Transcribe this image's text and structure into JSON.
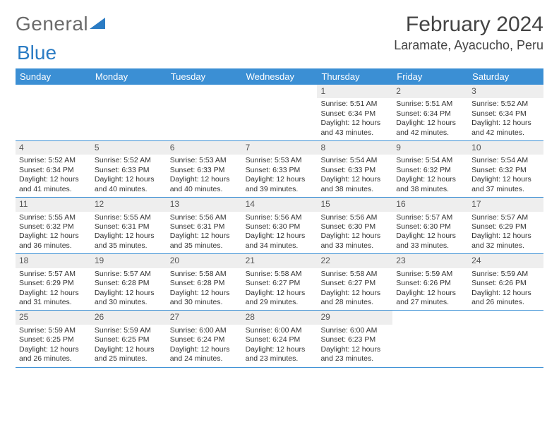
{
  "logo": {
    "text1": "General",
    "text2": "Blue"
  },
  "title": "February 2024",
  "location": "Laramate, Ayacucho, Peru",
  "day_headers": [
    "Sunday",
    "Monday",
    "Tuesday",
    "Wednesday",
    "Thursday",
    "Friday",
    "Saturday"
  ],
  "colors": {
    "header_bg": "#3b8fd4",
    "header_text": "#ffffff",
    "daynum_bg": "#eeeeee",
    "row_border": "#3b8fd4",
    "logo_gray": "#6b6b6b",
    "logo_blue": "#2b7cc4",
    "body_text": "#333333"
  },
  "layout": {
    "columns": 7,
    "rows": 5,
    "cell_fontsize_pt": 8,
    "title_fontsize_pt": 22,
    "location_fontsize_pt": 14,
    "header_fontsize_pt": 10
  },
  "weeks": [
    [
      {
        "empty": true
      },
      {
        "empty": true
      },
      {
        "empty": true
      },
      {
        "empty": true
      },
      {
        "num": "1",
        "sunrise": "Sunrise: 5:51 AM",
        "sunset": "Sunset: 6:34 PM",
        "daylight1": "Daylight: 12 hours",
        "daylight2": "and 43 minutes."
      },
      {
        "num": "2",
        "sunrise": "Sunrise: 5:51 AM",
        "sunset": "Sunset: 6:34 PM",
        "daylight1": "Daylight: 12 hours",
        "daylight2": "and 42 minutes."
      },
      {
        "num": "3",
        "sunrise": "Sunrise: 5:52 AM",
        "sunset": "Sunset: 6:34 PM",
        "daylight1": "Daylight: 12 hours",
        "daylight2": "and 42 minutes."
      }
    ],
    [
      {
        "num": "4",
        "sunrise": "Sunrise: 5:52 AM",
        "sunset": "Sunset: 6:34 PM",
        "daylight1": "Daylight: 12 hours",
        "daylight2": "and 41 minutes."
      },
      {
        "num": "5",
        "sunrise": "Sunrise: 5:52 AM",
        "sunset": "Sunset: 6:33 PM",
        "daylight1": "Daylight: 12 hours",
        "daylight2": "and 40 minutes."
      },
      {
        "num": "6",
        "sunrise": "Sunrise: 5:53 AM",
        "sunset": "Sunset: 6:33 PM",
        "daylight1": "Daylight: 12 hours",
        "daylight2": "and 40 minutes."
      },
      {
        "num": "7",
        "sunrise": "Sunrise: 5:53 AM",
        "sunset": "Sunset: 6:33 PM",
        "daylight1": "Daylight: 12 hours",
        "daylight2": "and 39 minutes."
      },
      {
        "num": "8",
        "sunrise": "Sunrise: 5:54 AM",
        "sunset": "Sunset: 6:33 PM",
        "daylight1": "Daylight: 12 hours",
        "daylight2": "and 38 minutes."
      },
      {
        "num": "9",
        "sunrise": "Sunrise: 5:54 AM",
        "sunset": "Sunset: 6:32 PM",
        "daylight1": "Daylight: 12 hours",
        "daylight2": "and 38 minutes."
      },
      {
        "num": "10",
        "sunrise": "Sunrise: 5:54 AM",
        "sunset": "Sunset: 6:32 PM",
        "daylight1": "Daylight: 12 hours",
        "daylight2": "and 37 minutes."
      }
    ],
    [
      {
        "num": "11",
        "sunrise": "Sunrise: 5:55 AM",
        "sunset": "Sunset: 6:32 PM",
        "daylight1": "Daylight: 12 hours",
        "daylight2": "and 36 minutes."
      },
      {
        "num": "12",
        "sunrise": "Sunrise: 5:55 AM",
        "sunset": "Sunset: 6:31 PM",
        "daylight1": "Daylight: 12 hours",
        "daylight2": "and 35 minutes."
      },
      {
        "num": "13",
        "sunrise": "Sunrise: 5:56 AM",
        "sunset": "Sunset: 6:31 PM",
        "daylight1": "Daylight: 12 hours",
        "daylight2": "and 35 minutes."
      },
      {
        "num": "14",
        "sunrise": "Sunrise: 5:56 AM",
        "sunset": "Sunset: 6:30 PM",
        "daylight1": "Daylight: 12 hours",
        "daylight2": "and 34 minutes."
      },
      {
        "num": "15",
        "sunrise": "Sunrise: 5:56 AM",
        "sunset": "Sunset: 6:30 PM",
        "daylight1": "Daylight: 12 hours",
        "daylight2": "and 33 minutes."
      },
      {
        "num": "16",
        "sunrise": "Sunrise: 5:57 AM",
        "sunset": "Sunset: 6:30 PM",
        "daylight1": "Daylight: 12 hours",
        "daylight2": "and 33 minutes."
      },
      {
        "num": "17",
        "sunrise": "Sunrise: 5:57 AM",
        "sunset": "Sunset: 6:29 PM",
        "daylight1": "Daylight: 12 hours",
        "daylight2": "and 32 minutes."
      }
    ],
    [
      {
        "num": "18",
        "sunrise": "Sunrise: 5:57 AM",
        "sunset": "Sunset: 6:29 PM",
        "daylight1": "Daylight: 12 hours",
        "daylight2": "and 31 minutes."
      },
      {
        "num": "19",
        "sunrise": "Sunrise: 5:57 AM",
        "sunset": "Sunset: 6:28 PM",
        "daylight1": "Daylight: 12 hours",
        "daylight2": "and 30 minutes."
      },
      {
        "num": "20",
        "sunrise": "Sunrise: 5:58 AM",
        "sunset": "Sunset: 6:28 PM",
        "daylight1": "Daylight: 12 hours",
        "daylight2": "and 30 minutes."
      },
      {
        "num": "21",
        "sunrise": "Sunrise: 5:58 AM",
        "sunset": "Sunset: 6:27 PM",
        "daylight1": "Daylight: 12 hours",
        "daylight2": "and 29 minutes."
      },
      {
        "num": "22",
        "sunrise": "Sunrise: 5:58 AM",
        "sunset": "Sunset: 6:27 PM",
        "daylight1": "Daylight: 12 hours",
        "daylight2": "and 28 minutes."
      },
      {
        "num": "23",
        "sunrise": "Sunrise: 5:59 AM",
        "sunset": "Sunset: 6:26 PM",
        "daylight1": "Daylight: 12 hours",
        "daylight2": "and 27 minutes."
      },
      {
        "num": "24",
        "sunrise": "Sunrise: 5:59 AM",
        "sunset": "Sunset: 6:26 PM",
        "daylight1": "Daylight: 12 hours",
        "daylight2": "and 26 minutes."
      }
    ],
    [
      {
        "num": "25",
        "sunrise": "Sunrise: 5:59 AM",
        "sunset": "Sunset: 6:25 PM",
        "daylight1": "Daylight: 12 hours",
        "daylight2": "and 26 minutes."
      },
      {
        "num": "26",
        "sunrise": "Sunrise: 5:59 AM",
        "sunset": "Sunset: 6:25 PM",
        "daylight1": "Daylight: 12 hours",
        "daylight2": "and 25 minutes."
      },
      {
        "num": "27",
        "sunrise": "Sunrise: 6:00 AM",
        "sunset": "Sunset: 6:24 PM",
        "daylight1": "Daylight: 12 hours",
        "daylight2": "and 24 minutes."
      },
      {
        "num": "28",
        "sunrise": "Sunrise: 6:00 AM",
        "sunset": "Sunset: 6:24 PM",
        "daylight1": "Daylight: 12 hours",
        "daylight2": "and 23 minutes."
      },
      {
        "num": "29",
        "sunrise": "Sunrise: 6:00 AM",
        "sunset": "Sunset: 6:23 PM",
        "daylight1": "Daylight: 12 hours",
        "daylight2": "and 23 minutes."
      },
      {
        "empty": true
      },
      {
        "empty": true
      }
    ]
  ]
}
